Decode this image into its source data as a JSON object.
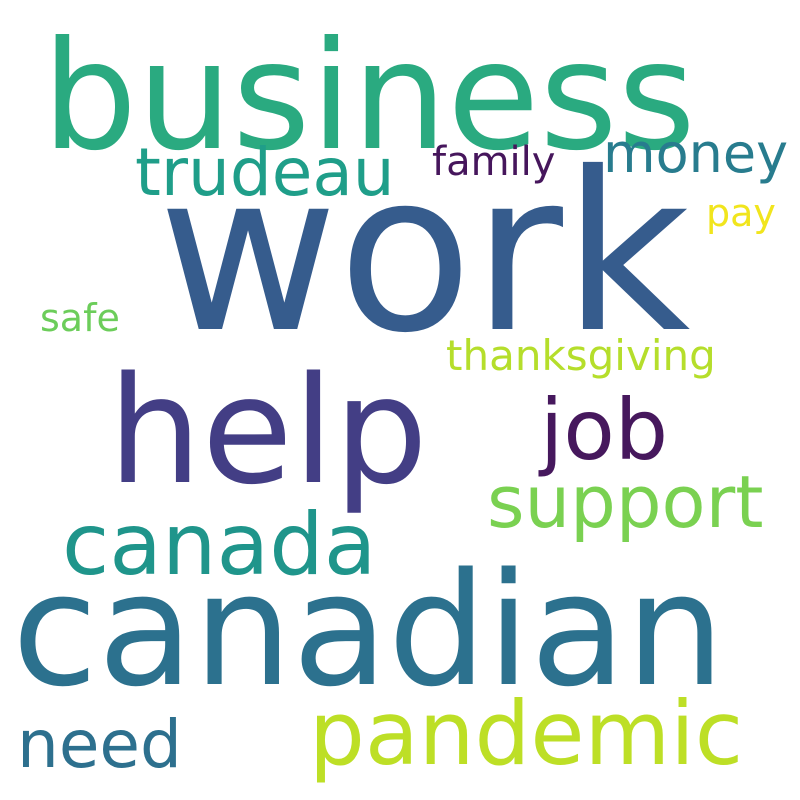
{
  "words": [
    {
      "id": "business",
      "text": "business",
      "color": "#2aaa80"
    },
    {
      "id": "work",
      "text": "work",
      "color": "#365c8d"
    },
    {
      "id": "trudeau",
      "text": "trudeau",
      "color": "#1f9e89"
    },
    {
      "id": "money",
      "text": "money",
      "color": "#287c8e"
    },
    {
      "id": "family",
      "text": "family",
      "color": "#46165c"
    },
    {
      "id": "pay",
      "text": "pay",
      "color": "#f1e51d"
    },
    {
      "id": "safe",
      "text": "safe",
      "color": "#6ccd5a"
    },
    {
      "id": "thanksgiving",
      "text": "thanksgiving",
      "color": "#b5de2b"
    },
    {
      "id": "help",
      "text": "help",
      "color": "#433e85"
    },
    {
      "id": "job",
      "text": "job",
      "color": "#46185d"
    },
    {
      "id": "support",
      "text": "support",
      "color": "#7ad151"
    },
    {
      "id": "canada",
      "text": "canada",
      "color": "#1f958b"
    },
    {
      "id": "canadian",
      "text": "canadian",
      "color": "#2c718e"
    },
    {
      "id": "pandemic",
      "text": "pandemic",
      "color": "#bddf26"
    },
    {
      "id": "need",
      "text": "need",
      "color": "#2d708e"
    }
  ]
}
